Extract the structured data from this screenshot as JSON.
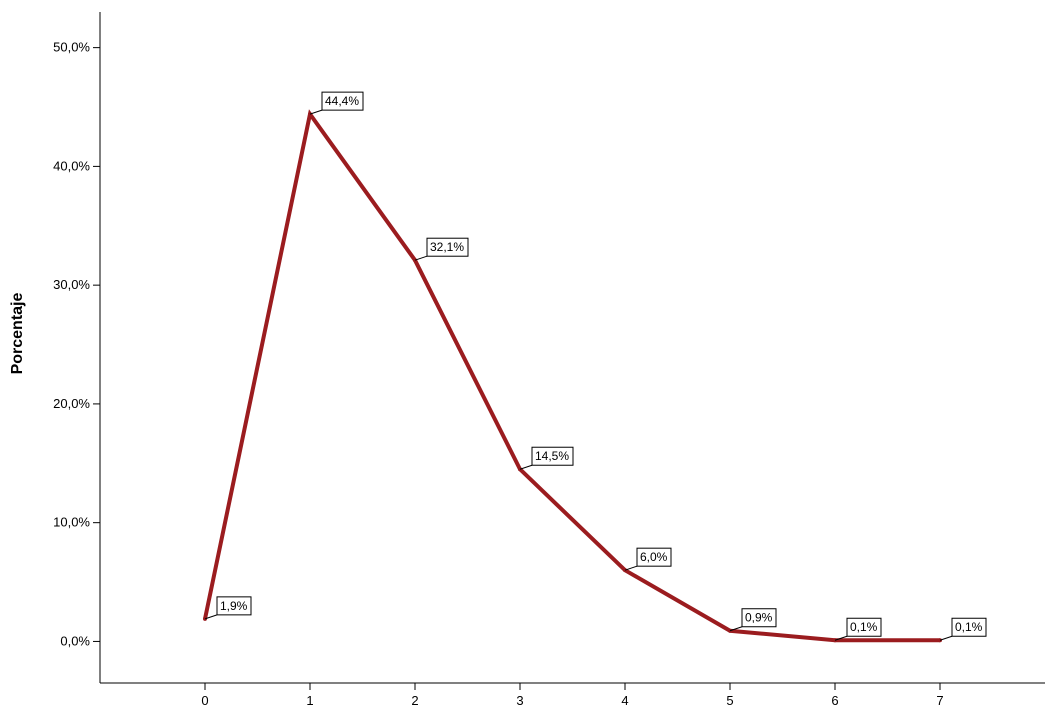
{
  "chart_data": {
    "type": "line",
    "title": "",
    "xlabel": "",
    "ylabel": "Porcentaje",
    "x": [
      0,
      1,
      2,
      3,
      4,
      5,
      6,
      7
    ],
    "xlim": [
      -1,
      8
    ],
    "ylim": [
      -3.5,
      53
    ],
    "yticks": [
      0,
      10,
      20,
      30,
      40,
      50
    ],
    "ytick_labels": [
      "0,0%",
      "10,0%",
      "20,0%",
      "30,0%",
      "40,0%",
      "50,0%"
    ],
    "xtick_labels": [
      "0",
      "1",
      "2",
      "3",
      "4",
      "5",
      "6",
      "7"
    ],
    "series": [
      {
        "values": [
          1.9,
          44.4,
          32.1,
          14.5,
          6.0,
          0.9,
          0.1,
          0.1
        ],
        "labels": [
          "1,9%",
          "44,4%",
          "32,1%",
          "14,5%",
          "6,0%",
          "0,9%",
          "0,1%",
          "0,1%"
        ],
        "color": "#9b1c1f"
      }
    ],
    "grid": false,
    "legend": "none"
  }
}
